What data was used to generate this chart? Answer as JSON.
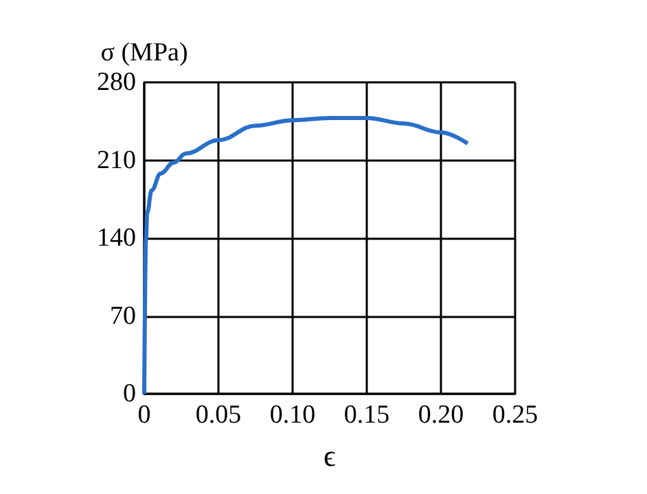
{
  "chart_data": {
    "type": "line",
    "ylabel": "σ (MPa)",
    "xlabel": "ϵ",
    "x": [
      0,
      0.0012,
      0.002,
      0.005,
      0.011,
      0.02,
      0.028,
      0.05,
      0.075,
      0.1,
      0.125,
      0.15,
      0.175,
      0.2,
      0.218
    ],
    "series": [
      {
        "color": "#2a6fc9",
        "values": [
          0,
          140,
          163,
          183,
          198,
          208,
          216,
          228,
          241,
          246,
          248,
          248,
          243,
          235,
          225
        ]
      }
    ],
    "xlim": [
      0,
      0.25
    ],
    "xticks": [
      0,
      0.05,
      {
        "value": 0.1,
        "label": "0.10"
      },
      0.15,
      {
        "value": 0.2,
        "label": "0.20"
      },
      0.25
    ],
    "ylim": [
      0,
      280
    ],
    "yticks": [
      0,
      70,
      140,
      210,
      280
    ],
    "grid": true,
    "marker": "none",
    "line_style": "solid"
  }
}
